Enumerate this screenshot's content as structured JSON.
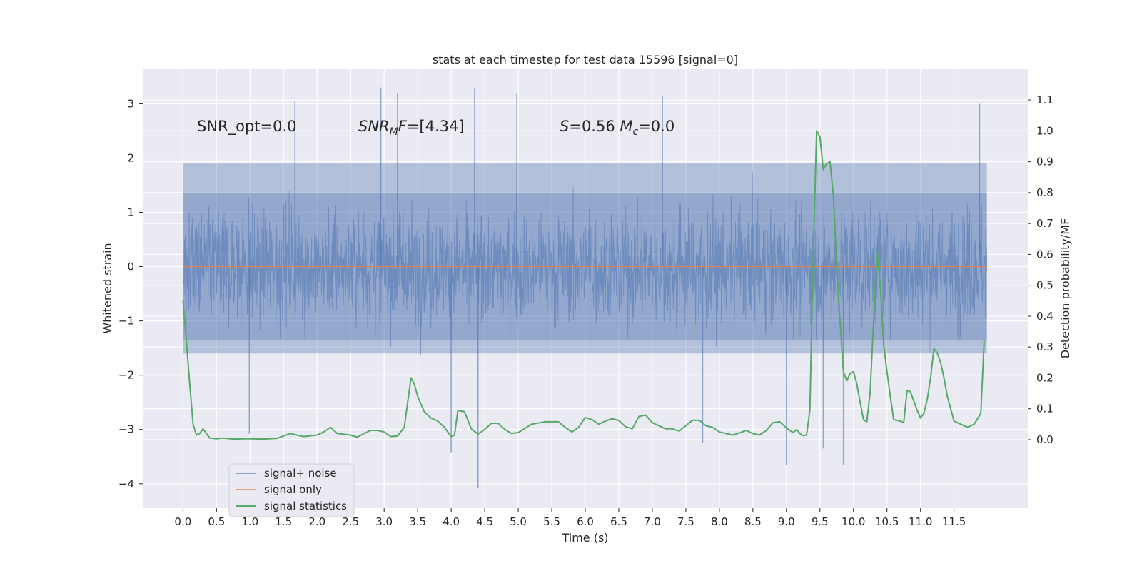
{
  "chart_data": {
    "type": "line",
    "title": "stats at each timestep for test data 15596 [signal=0]",
    "xlabel": "Time (s)",
    "ylabel_left": "Whitened strain",
    "ylabel_right": "Detection probability/MF",
    "xlim": [
      -0.6,
      12.6
    ],
    "ylim_left": [
      -4.45,
      3.65
    ],
    "ylim_right": [
      -0.222,
      1.202
    ],
    "x_ticks": [
      0.0,
      0.5,
      1.0,
      1.5,
      2.0,
      2.5,
      3.0,
      3.5,
      4.0,
      4.5,
      5.0,
      5.5,
      6.0,
      6.5,
      7.0,
      7.5,
      8.0,
      8.5,
      9.0,
      9.5,
      10.0,
      10.5,
      11.0,
      11.5
    ],
    "x_tick_labels": [
      "0.0",
      "0.5",
      "1.0",
      "1.5",
      "2.0",
      "2.5",
      "3.0",
      "3.5",
      "4.0",
      "4.5",
      "5.0",
      "5.5",
      "6.0",
      "6.5",
      "7.0",
      "7.5",
      "8.0",
      "8.5",
      "9.0",
      "9.5",
      "10.0",
      "10.5",
      "11.0",
      "11.5"
    ],
    "y_left_ticks": [
      -4,
      -3,
      -2,
      -1,
      0,
      1,
      2,
      3
    ],
    "y_left_tick_labels": [
      "−4",
      "−3",
      "−2",
      "−1",
      "0",
      "1",
      "2",
      "3"
    ],
    "y_right_ticks": [
      0.0,
      0.1,
      0.2,
      0.3,
      0.4,
      0.5,
      0.6,
      0.7,
      0.8,
      0.9,
      1.0,
      1.1
    ],
    "y_right_tick_labels": [
      "0.0",
      "0.1",
      "0.2",
      "0.3",
      "0.4",
      "0.5",
      "0.6",
      "0.7",
      "0.8",
      "0.9",
      "1.0",
      "1.1"
    ],
    "grid": true,
    "legend_position": "lower-left",
    "annotations": [
      {
        "text": "SNR_opt=0.0",
        "x": 0.2,
        "y": 2.55
      },
      {
        "text": "SNR_MF=[4.34]",
        "x": 2.6,
        "y": 2.55
      },
      {
        "text": "S=0.56   M_c=0.0",
        "x": 5.6,
        "y": 2.55
      }
    ],
    "series": [
      {
        "name": "signal+ noise",
        "color": "#4c72b0",
        "axis": "left",
        "kind": "noise",
        "x_range": [
          0.0,
          11.99
        ],
        "band": [
          -1.35,
          1.35
        ],
        "fill_band": [
          -1.6,
          1.9
        ],
        "spikes": [
          {
            "x": 1.67,
            "y": 3.05
          },
          {
            "x": 2.95,
            "y": 3.3
          },
          {
            "x": 3.2,
            "y": 3.2
          },
          {
            "x": 4.35,
            "y": 3.3
          },
          {
            "x": 4.98,
            "y": 3.2
          },
          {
            "x": 7.15,
            "y": 3.15
          },
          {
            "x": 11.88,
            "y": 3.0
          },
          {
            "x": 4.4,
            "y": -4.08
          },
          {
            "x": 4.0,
            "y": -3.42
          },
          {
            "x": 0.99,
            "y": -3.08
          },
          {
            "x": 9.0,
            "y": -3.65
          },
          {
            "x": 9.85,
            "y": -3.65
          },
          {
            "x": 9.55,
            "y": -3.35
          },
          {
            "x": 7.75,
            "y": -3.25
          }
        ]
      },
      {
        "name": "signal only",
        "color": "#dd8452",
        "axis": "left",
        "kind": "line",
        "x": [
          0.0,
          11.99
        ],
        "y": [
          0.0,
          0.0
        ]
      },
      {
        "name": "signal statistics",
        "color": "#55a868",
        "axis": "right",
        "kind": "line",
        "x": [
          0.0,
          0.05,
          0.1,
          0.15,
          0.2,
          0.25,
          0.3,
          0.4,
          0.5,
          0.6,
          0.7,
          0.8,
          0.9,
          1.0,
          1.2,
          1.4,
          1.6,
          1.7,
          1.8,
          2.0,
          2.1,
          2.2,
          2.3,
          2.5,
          2.6,
          2.7,
          2.8,
          2.9,
          3.0,
          3.1,
          3.2,
          3.3,
          3.35,
          3.4,
          3.45,
          3.5,
          3.6,
          3.7,
          3.8,
          3.9,
          4.0,
          4.05,
          4.1,
          4.2,
          4.3,
          4.4,
          4.5,
          4.6,
          4.7,
          4.8,
          4.9,
          5.0,
          5.2,
          5.4,
          5.6,
          5.7,
          5.8,
          5.9,
          6.0,
          6.1,
          6.2,
          6.3,
          6.4,
          6.5,
          6.6,
          6.7,
          6.8,
          6.9,
          7.0,
          7.2,
          7.3,
          7.4,
          7.5,
          7.6,
          7.7,
          7.8,
          7.9,
          8.0,
          8.2,
          8.3,
          8.4,
          8.5,
          8.6,
          8.7,
          8.8,
          8.9,
          9.0,
          9.1,
          9.15,
          9.2,
          9.25,
          9.3,
          9.35,
          9.4,
          9.45,
          9.5,
          9.55,
          9.6,
          9.65,
          9.7,
          9.75,
          9.8,
          9.85,
          9.9,
          9.95,
          10.0,
          10.05,
          10.1,
          10.15,
          10.2,
          10.25,
          10.3,
          10.35,
          10.4,
          10.45,
          10.5,
          10.55,
          10.6,
          10.7,
          10.75,
          10.8,
          10.85,
          10.9,
          10.95,
          11.0,
          11.05,
          11.1,
          11.15,
          11.2,
          11.25,
          11.3,
          11.35,
          11.4,
          11.5,
          11.6,
          11.7,
          11.75,
          11.8,
          11.9,
          11.95
        ],
        "y": [
          0.45,
          0.32,
          0.18,
          0.05,
          0.015,
          0.02,
          0.035,
          0.005,
          0.003,
          0.005,
          0.003,
          0.002,
          0.003,
          0.003,
          0.002,
          0.004,
          0.02,
          0.015,
          0.01,
          0.015,
          0.025,
          0.04,
          0.02,
          0.015,
          0.008,
          0.02,
          0.03,
          0.03,
          0.025,
          0.01,
          0.012,
          0.04,
          0.12,
          0.2,
          0.18,
          0.14,
          0.09,
          0.07,
          0.06,
          0.04,
          0.01,
          0.015,
          0.095,
          0.09,
          0.035,
          0.018,
          0.033,
          0.053,
          0.053,
          0.033,
          0.02,
          0.023,
          0.05,
          0.058,
          0.058,
          0.04,
          0.025,
          0.04,
          0.072,
          0.065,
          0.05,
          0.06,
          0.068,
          0.062,
          0.042,
          0.035,
          0.075,
          0.08,
          0.055,
          0.035,
          0.035,
          0.028,
          0.045,
          0.063,
          0.063,
          0.045,
          0.04,
          0.025,
          0.015,
          0.022,
          0.03,
          0.02,
          0.015,
          0.03,
          0.055,
          0.058,
          0.038,
          0.023,
          0.033,
          0.02,
          0.013,
          0.015,
          0.095,
          0.6,
          1.0,
          0.98,
          0.875,
          0.895,
          0.9,
          0.79,
          0.56,
          0.38,
          0.22,
          0.19,
          0.215,
          0.22,
          0.18,
          0.12,
          0.065,
          0.058,
          0.155,
          0.38,
          0.61,
          0.5,
          0.31,
          0.22,
          0.14,
          0.065,
          0.06,
          0.055,
          0.16,
          0.155,
          0.125,
          0.095,
          0.07,
          0.085,
          0.13,
          0.2,
          0.295,
          0.28,
          0.25,
          0.2,
          0.14,
          0.06,
          0.05,
          0.04,
          0.045,
          0.05,
          0.085,
          0.32
        ]
      }
    ]
  }
}
